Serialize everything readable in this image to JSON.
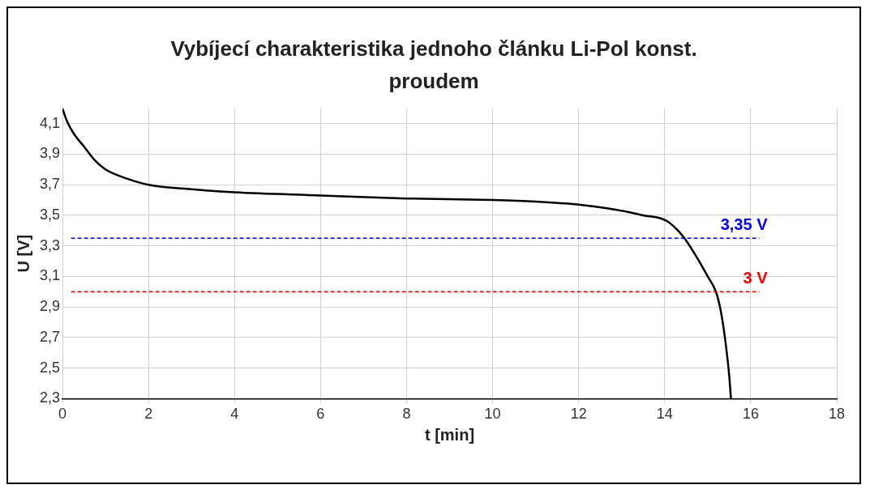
{
  "chart_data": {
    "type": "line",
    "title": "Vybíjecí charakteristika jednoho článku Li-Pol konst. proudem",
    "xlabel": "t [min]",
    "ylabel": "U [V]",
    "series": [
      {
        "color": "#000000",
        "x": [
          0,
          0.1,
          0.25,
          0.5,
          0.75,
          1,
          1.5,
          2,
          3,
          4,
          6,
          8,
          10,
          11,
          12,
          13,
          13.5,
          14,
          14.2,
          14.46,
          14.8,
          15,
          15.19,
          15.3,
          15.4,
          15.5,
          15.54
        ],
        "values": [
          4.2,
          4.12,
          4.04,
          3.95,
          3.86,
          3.8,
          3.74,
          3.7,
          3.67,
          3.65,
          3.63,
          3.61,
          3.6,
          3.59,
          3.57,
          3.53,
          3.5,
          3.47,
          3.43,
          3.35,
          3.2,
          3.1,
          3.0,
          2.88,
          2.7,
          2.45,
          2.3
        ]
      }
    ],
    "xlim": [
      0,
      18
    ],
    "xticks": [
      0,
      2,
      4,
      6,
      8,
      10,
      12,
      14,
      16,
      18
    ],
    "ylim": [
      2.3,
      4.2
    ],
    "yticks": [
      {
        "value": 2.3,
        "label": "2,3"
      },
      {
        "value": 2.5,
        "label": "2,5"
      },
      {
        "value": 2.7,
        "label": "2,7"
      },
      {
        "value": 2.9,
        "label": "2,9"
      },
      {
        "value": 3.1,
        "label": "3,1"
      },
      {
        "value": 3.3,
        "label": "3,3"
      },
      {
        "value": 3.5,
        "label": "3,5"
      },
      {
        "value": 3.7,
        "label": "3,7"
      },
      {
        "value": 3.9,
        "label": "3,9"
      },
      {
        "value": 4.1,
        "label": "4,1"
      }
    ],
    "ref_lines": [
      {
        "axis": "y",
        "value": 3.35,
        "label": "3,35 V",
        "color": "#0000ff",
        "line_style": "dashed"
      },
      {
        "axis": "y",
        "value": 3,
        "label": "3 V",
        "color": "#ff0000",
        "line_style": "dashed"
      }
    ],
    "grid": true,
    "legend": false,
    "marker": "none",
    "line_style": "solid"
  }
}
